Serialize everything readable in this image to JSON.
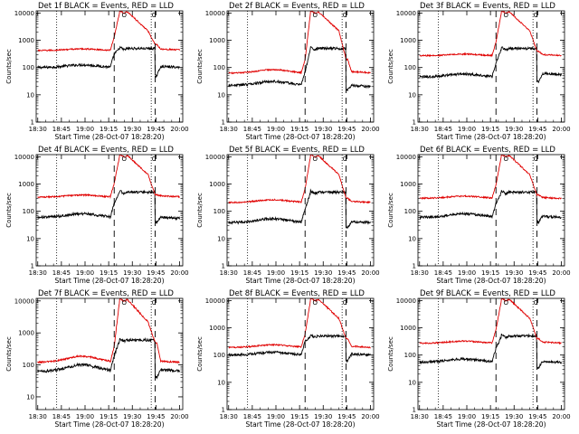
{
  "figure": {
    "background": "#ffffff",
    "axis_color": "#000000",
    "events_color": "#000000",
    "lld_color": "#e00000"
  },
  "chart_data": [
    {
      "type": "line",
      "detector": "1f",
      "title": "Det 1f BLACK = Events, RED = LLD",
      "xlabel": "Start Time (28-Oct-07 18:28:20)",
      "ylabel": "Counts/sec",
      "xticks": [
        "18:30",
        "18:45",
        "19:00",
        "19:15",
        "19:30",
        "19:45",
        "20:00"
      ],
      "yticks": [
        "1",
        "10",
        "100",
        "1000",
        "10000"
      ],
      "ylim": [
        1,
        12000
      ],
      "xlim_minutes": [
        -1,
        92
      ],
      "yscale": "log",
      "dotted_lines_min": [
        12,
        72
      ],
      "dashed_lines_min": [
        48.5,
        74.5
      ],
      "markers": [
        {
          "label": "O",
          "min": 55
        },
        {
          "label": "C",
          "min": 74
        }
      ],
      "series": [
        {
          "name": "Events",
          "color": "#000000",
          "base": 100,
          "hump": 1.25,
          "peak": 500,
          "spike": 50,
          "tail": 110
        },
        {
          "name": "LLD",
          "color": "#e00000",
          "base": 420,
          "hump": 1.15,
          "peak": 11000,
          "spike": 700,
          "tail": 480
        }
      ]
    },
    {
      "type": "line",
      "detector": "2f",
      "title": "Det 2f BLACK = Events, RED = LLD",
      "xlabel": "Start Time (28-Oct-07 18:28:20)",
      "ylabel": "Counts/sec",
      "xticks": [
        "18:30",
        "18:45",
        "19:00",
        "19:15",
        "19:30",
        "19:45",
        "20:00"
      ],
      "yticks": [
        "1",
        "10",
        "100",
        "1000",
        "10000"
      ],
      "ylim": [
        1,
        12000
      ],
      "xlim_minutes": [
        -1,
        92
      ],
      "yscale": "log",
      "dotted_lines_min": [
        12,
        72
      ],
      "dashed_lines_min": [
        48.5,
        74.5
      ],
      "markers": [
        {
          "label": "O",
          "min": 55
        },
        {
          "label": "C",
          "min": 74
        }
      ],
      "series": [
        {
          "name": "Events",
          "color": "#000000",
          "base": 22,
          "hump": 1.4,
          "peak": 500,
          "spike": 15,
          "tail": 22
        },
        {
          "name": "LLD",
          "color": "#e00000",
          "base": 62,
          "hump": 1.35,
          "peak": 11000,
          "spike": 200,
          "tail": 70
        }
      ]
    },
    {
      "type": "line",
      "detector": "3f",
      "title": "Det 3f BLACK = Events, RED = LLD",
      "xlabel": "Start Time (28-Oct-07 18:28:20)",
      "ylabel": "Counts/sec",
      "xticks": [
        "18:30",
        "18:45",
        "19:00",
        "19:15",
        "19:30",
        "19:45",
        "20:00"
      ],
      "yticks": [
        "1",
        "10",
        "100",
        "1000",
        "10000"
      ],
      "ylim": [
        1,
        12000
      ],
      "xlim_minutes": [
        -1,
        92
      ],
      "yscale": "log",
      "dotted_lines_min": [
        12,
        72
      ],
      "dashed_lines_min": [
        48.5,
        74.5
      ],
      "markers": [
        {
          "label": "O",
          "min": 55
        },
        {
          "label": "C",
          "min": 74
        }
      ],
      "series": [
        {
          "name": "Events",
          "color": "#000000",
          "base": 45,
          "hump": 1.3,
          "peak": 500,
          "spike": 30,
          "tail": 60
        },
        {
          "name": "LLD",
          "color": "#e00000",
          "base": 270,
          "hump": 1.15,
          "peak": 11000,
          "spike": 400,
          "tail": 300
        }
      ]
    },
    {
      "type": "line",
      "detector": "4f",
      "title": "Det 4f BLACK = Events, RED = LLD",
      "xlabel": "Start Time (28-Oct-07 18:28:20)",
      "ylabel": "Counts/sec",
      "xticks": [
        "18:30",
        "18:45",
        "19:00",
        "19:15",
        "19:30",
        "19:45",
        "20:00"
      ],
      "yticks": [
        "1",
        "10",
        "100",
        "1000",
        "10000"
      ],
      "ylim": [
        1,
        12000
      ],
      "xlim_minutes": [
        -1,
        92
      ],
      "yscale": "log",
      "dotted_lines_min": [
        12,
        72
      ],
      "dashed_lines_min": [
        48.5,
        74.5
      ],
      "markers": [
        {
          "label": "O",
          "min": 55
        },
        {
          "label": "C",
          "min": 74
        }
      ],
      "series": [
        {
          "name": "Events",
          "color": "#000000",
          "base": 60,
          "hump": 1.35,
          "peak": 500,
          "spike": 40,
          "tail": 60
        },
        {
          "name": "LLD",
          "color": "#e00000",
          "base": 330,
          "hump": 1.2,
          "peak": 11000,
          "spike": 400,
          "tail": 370
        }
      ]
    },
    {
      "type": "line",
      "detector": "5f",
      "title": "Det 5f BLACK = Events, RED = LLD",
      "xlabel": "Start Time (28-Oct-07 18:28:20)",
      "ylabel": "Counts/sec",
      "xticks": [
        "18:30",
        "18:45",
        "19:00",
        "19:15",
        "19:30",
        "19:45",
        "20:00"
      ],
      "yticks": [
        "1",
        "10",
        "100",
        "1000",
        "10000"
      ],
      "ylim": [
        1,
        12000
      ],
      "xlim_minutes": [
        -1,
        92
      ],
      "yscale": "log",
      "dotted_lines_min": [
        12,
        72
      ],
      "dashed_lines_min": [
        48.5,
        74.5
      ],
      "markers": [
        {
          "label": "O",
          "min": 55
        },
        {
          "label": "C",
          "min": 74
        }
      ],
      "series": [
        {
          "name": "Events",
          "color": "#000000",
          "base": 38,
          "hump": 1.4,
          "peak": 500,
          "spike": 25,
          "tail": 42
        },
        {
          "name": "LLD",
          "color": "#e00000",
          "base": 210,
          "hump": 1.25,
          "peak": 11000,
          "spike": 300,
          "tail": 230
        }
      ]
    },
    {
      "type": "line",
      "detector": "6f",
      "title": "Det 6f BLACK = Events, RED = LLD",
      "xlabel": "Start Time (28-Oct-07 18:28:20)",
      "ylabel": "Counts/sec",
      "xticks": [
        "18:30",
        "18:45",
        "19:00",
        "19:15",
        "19:30",
        "19:45",
        "20:00"
      ],
      "yticks": [
        "1",
        "10",
        "100",
        "1000",
        "10000"
      ],
      "ylim": [
        1,
        12000
      ],
      "xlim_minutes": [
        -1,
        92
      ],
      "yscale": "log",
      "dotted_lines_min": [
        12,
        72
      ],
      "dashed_lines_min": [
        48.5,
        74.5
      ],
      "markers": [
        {
          "label": "O",
          "min": 55
        },
        {
          "label": "C",
          "min": 74
        }
      ],
      "series": [
        {
          "name": "Events",
          "color": "#000000",
          "base": 60,
          "hump": 1.35,
          "peak": 500,
          "spike": 40,
          "tail": 65
        },
        {
          "name": "LLD",
          "color": "#e00000",
          "base": 300,
          "hump": 1.2,
          "peak": 11000,
          "spike": 400,
          "tail": 320
        }
      ]
    },
    {
      "type": "line",
      "detector": "7f",
      "title": "Det 7f BLACK = Events, RED = LLD",
      "xlabel": "Start Time (28-Oct-07 18:28:20)",
      "ylabel": "Counts/sec",
      "xticks": [
        "18:30",
        "18:45",
        "19:00",
        "19:15",
        "19:30",
        "19:45",
        "20:00"
      ],
      "yticks": [
        "10",
        "100",
        "1000",
        "10000"
      ],
      "ylim": [
        4,
        12000
      ],
      "xlim_minutes": [
        -1,
        92
      ],
      "yscale": "log",
      "dotted_lines_min": [
        12,
        72
      ],
      "dashed_lines_min": [
        48.5,
        74.5
      ],
      "markers": [
        {
          "label": "O",
          "min": 55
        },
        {
          "label": "C",
          "min": 74
        }
      ],
      "series": [
        {
          "name": "Events",
          "color": "#000000",
          "base": 62,
          "hump": 1.6,
          "peak": 600,
          "spike": 40,
          "tail": 70
        },
        {
          "name": "LLD",
          "color": "#e00000",
          "base": 120,
          "hump": 1.55,
          "peak": 11000,
          "spike": 500,
          "tail": 130
        }
      ]
    },
    {
      "type": "line",
      "detector": "8f",
      "title": "Det 8f BLACK = Events, RED = LLD",
      "xlabel": "Start Time (28-Oct-07 18:28:20)",
      "ylabel": "Counts/sec",
      "xticks": [
        "18:30",
        "18:45",
        "19:00",
        "19:15",
        "19:30",
        "19:45",
        "20:00"
      ],
      "yticks": [
        "1",
        "10",
        "100",
        "1000",
        "10000"
      ],
      "ylim": [
        1,
        12000
      ],
      "xlim_minutes": [
        -1,
        92
      ],
      "yscale": "log",
      "dotted_lines_min": [
        12,
        72
      ],
      "dashed_lines_min": [
        48.5,
        74.5
      ],
      "markers": [
        {
          "label": "O",
          "min": 55
        },
        {
          "label": "C",
          "min": 74
        }
      ],
      "series": [
        {
          "name": "Events",
          "color": "#000000",
          "base": 100,
          "hump": 1.25,
          "peak": 500,
          "spike": 60,
          "tail": 110
        },
        {
          "name": "LLD",
          "color": "#e00000",
          "base": 190,
          "hump": 1.25,
          "peak": 11000,
          "spike": 400,
          "tail": 210
        }
      ]
    },
    {
      "type": "line",
      "detector": "9f",
      "title": "Det 9f BLACK = Events, RED = LLD",
      "xlabel": "Start Time (28-Oct-07 18:28:20)",
      "ylabel": "Counts/sec",
      "xticks": [
        "18:30",
        "18:45",
        "19:00",
        "19:15",
        "19:30",
        "19:45",
        "20:00"
      ],
      "yticks": [
        "1",
        "10",
        "100",
        "1000",
        "10000"
      ],
      "ylim": [
        1,
        12000
      ],
      "xlim_minutes": [
        -1,
        92
      ],
      "yscale": "log",
      "dotted_lines_min": [
        12,
        72
      ],
      "dashed_lines_min": [
        48.5,
        74.5
      ],
      "markers": [
        {
          "label": "O",
          "min": 55
        },
        {
          "label": "C",
          "min": 74
        }
      ],
      "series": [
        {
          "name": "Events",
          "color": "#000000",
          "base": 55,
          "hump": 1.3,
          "peak": 500,
          "spike": 35,
          "tail": 58
        },
        {
          "name": "LLD",
          "color": "#e00000",
          "base": 270,
          "hump": 1.2,
          "peak": 11000,
          "spike": 400,
          "tail": 300
        }
      ]
    }
  ]
}
